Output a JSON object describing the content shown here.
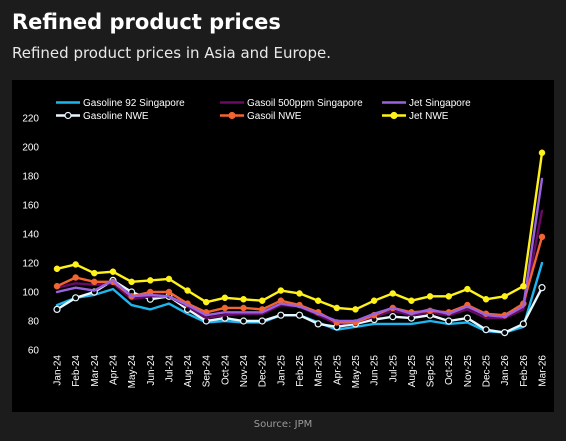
{
  "header": {
    "title": "Refined product prices",
    "subtitle": "Refined product prices in Asia and Europe."
  },
  "footer": {
    "source": "Source: JPM"
  },
  "chart_data": {
    "type": "line",
    "title": "",
    "xlabel": "",
    "ylabel": "",
    "ylim": [
      60,
      220
    ],
    "yticks": [
      60,
      80,
      100,
      120,
      140,
      160,
      180,
      200,
      220
    ],
    "grid": false,
    "legend_position": "top",
    "categories": [
      "Jan-24",
      "Feb-24",
      "Mar-24",
      "Apr-24",
      "May-24",
      "Jun-24",
      "Jul-24",
      "Aug-24",
      "Sep-24",
      "Oct-24",
      "Nov-24",
      "Dec-24",
      "Jan-25",
      "Feb-25",
      "Mar-25",
      "Apr-25",
      "May-25",
      "Jun-25",
      "Jul-25",
      "Aug-25",
      "Sep-25",
      "Oct-25",
      "Nov-25",
      "Dec-25",
      "Jan-26",
      "Feb-26",
      "Mar-26"
    ],
    "series": [
      {
        "name": "Gasoline 92 Singapore",
        "color": "#1fb6f0",
        "marker": "none",
        "values": [
          91,
          96,
          98,
          102,
          91,
          88,
          92,
          85,
          79,
          80,
          79,
          79,
          84,
          84,
          79,
          74,
          76,
          78,
          78,
          78,
          80,
          78,
          79,
          73,
          72,
          76,
          120
        ]
      },
      {
        "name": "Gasoline NWE",
        "color": "#e8f8ff",
        "marker": "open-circle",
        "values": [
          88,
          96,
          100,
          108,
          100,
          95,
          97,
          88,
          80,
          82,
          80,
          80,
          84,
          84,
          78,
          76,
          78,
          81,
          83,
          82,
          84,
          80,
          82,
          74,
          72,
          78,
          103
        ]
      },
      {
        "name": "Gasoil 500ppm Singapore",
        "color": "#6a0a66",
        "marker": "none",
        "values": [
          103,
          106,
          105,
          106,
          95,
          97,
          97,
          90,
          82,
          84,
          85,
          85,
          91,
          90,
          84,
          78,
          79,
          83,
          87,
          84,
          86,
          84,
          88,
          82,
          82,
          88,
          156
        ]
      },
      {
        "name": "Gasoil NWE",
        "color": "#f26430",
        "marker": "filled-circle",
        "values": [
          104,
          110,
          107,
          107,
          97,
          100,
          100,
          92,
          86,
          89,
          89,
          88,
          94,
          91,
          86,
          79,
          79,
          84,
          89,
          86,
          87,
          86,
          91,
          85,
          84,
          92,
          138
        ]
      },
      {
        "name": "Jet Singapore",
        "color": "#9b62e0",
        "marker": "none",
        "values": [
          100,
          103,
          101,
          108,
          97,
          98,
          97,
          91,
          84,
          86,
          86,
          86,
          92,
          90,
          85,
          80,
          80,
          85,
          89,
          85,
          88,
          85,
          90,
          84,
          83,
          90,
          178
        ]
      },
      {
        "name": "Jet NWE",
        "color": "#fff21a",
        "marker": "filled-circle",
        "values": [
          116,
          119,
          113,
          114,
          107,
          108,
          109,
          101,
          93,
          96,
          95,
          94,
          101,
          99,
          94,
          89,
          88,
          94,
          99,
          94,
          97,
          97,
          102,
          95,
          97,
          104,
          196
        ]
      }
    ]
  }
}
